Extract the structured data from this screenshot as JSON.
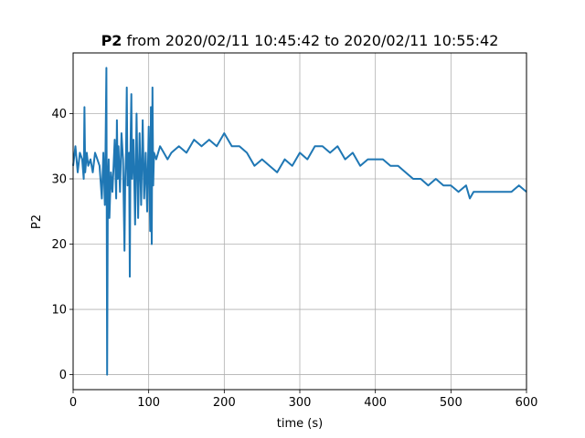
{
  "chart_data": {
    "type": "line",
    "title_bold": "P2",
    "title_rest": " from 2020/02/11 10:45:42 to 2020/02/11 10:55:42",
    "xlabel": "time (s)",
    "ylabel": "P2",
    "xlim": [
      0,
      600
    ],
    "ylim": [
      -2.3,
      49.3
    ],
    "xticks": [
      0,
      100,
      200,
      300,
      400,
      500,
      600
    ],
    "yticks": [
      0,
      10,
      20,
      30,
      40
    ],
    "grid": true,
    "series_color": "#1f77b4",
    "series": [
      {
        "x": [
          0,
          3,
          6,
          9,
          12,
          14,
          15,
          16,
          18,
          20,
          23,
          26,
          29,
          32,
          35,
          38,
          40,
          42,
          43,
          44,
          45,
          46,
          47,
          48,
          50,
          52,
          55,
          57,
          58,
          59,
          60,
          62,
          64,
          66,
          68,
          69,
          70,
          71,
          72,
          74,
          75,
          76,
          77,
          78,
          80,
          82,
          84,
          86,
          88,
          90,
          92,
          94,
          96,
          98,
          100,
          102,
          103,
          104,
          105,
          106,
          107,
          110,
          115,
          120,
          125,
          130,
          140,
          150,
          160,
          170,
          180,
          190,
          200,
          210,
          220,
          230,
          240,
          250,
          260,
          270,
          280,
          290,
          300,
          310,
          320,
          330,
          340,
          350,
          360,
          370,
          380,
          390,
          400,
          410,
          420,
          430,
          440,
          450,
          460,
          470,
          480,
          490,
          500,
          510,
          520,
          525,
          530,
          540,
          550,
          560,
          570,
          580,
          590,
          600
        ],
        "y": [
          32,
          35,
          31,
          34,
          33,
          30,
          41,
          31,
          34,
          32,
          33,
          31,
          34,
          33,
          32,
          27,
          34,
          26,
          35,
          47,
          0,
          29,
          33,
          24,
          31,
          28,
          36,
          27,
          39,
          30,
          35,
          28,
          37,
          33,
          19,
          30,
          34,
          44,
          29,
          34,
          15,
          35,
          43,
          30,
          36,
          23,
          40,
          24,
          37,
          26,
          39,
          27,
          34,
          25,
          38,
          22,
          41,
          20,
          44,
          29,
          34,
          33,
          35,
          34,
          33,
          34,
          35,
          34,
          36,
          35,
          36,
          35,
          37,
          35,
          35,
          34,
          32,
          33,
          32,
          31,
          33,
          32,
          34,
          33,
          35,
          35,
          34,
          35,
          33,
          34,
          32,
          33,
          33,
          33,
          32,
          32,
          31,
          30,
          30,
          29,
          30,
          29,
          29,
          28,
          29,
          27,
          28,
          28,
          28,
          28,
          28,
          28,
          29,
          28
        ]
      }
    ]
  }
}
